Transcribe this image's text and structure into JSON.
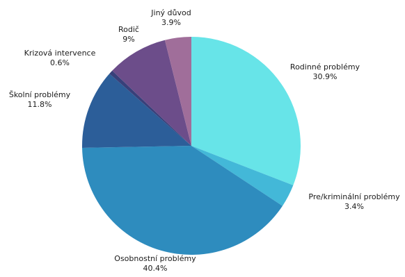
{
  "chart_data": {
    "type": "pie",
    "title": "",
    "legend": "none",
    "start_direction": "top",
    "direction": "clockwise",
    "slices": [
      {
        "label": "Rodinné problémy",
        "value": 30.9,
        "display": "30.9%",
        "color": "#67E4E8"
      },
      {
        "label": "Pre/kriminální problémy",
        "value": 3.4,
        "display": "3.4%",
        "color": "#43B8D8"
      },
      {
        "label": "Osobnostní problémy",
        "value": 40.4,
        "display": "40.4%",
        "color": "#2E8CBE"
      },
      {
        "label": "Školní problémy",
        "value": 11.8,
        "display": "11.8%",
        "color": "#2C5E99"
      },
      {
        "label": "Krizová intervence",
        "value": 0.6,
        "display": "0.6%",
        "color": "#38407A"
      },
      {
        "label": "Rodič",
        "value": 9,
        "display": "9%",
        "color": "#6C4D8A"
      },
      {
        "label": "Jiný důvod",
        "value": 3.9,
        "display": "3.9%",
        "color": "#A06E9A"
      }
    ]
  }
}
